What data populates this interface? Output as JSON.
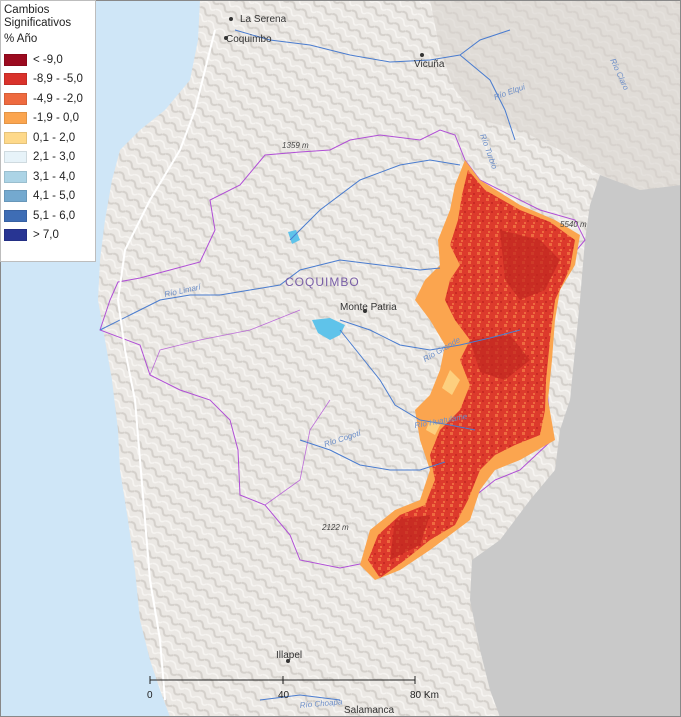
{
  "legend": {
    "title_line1": "Cambios",
    "title_line2": "Significativos",
    "unit": "% Año",
    "items": [
      {
        "label": "< -9,0",
        "color": "#9b0a1f"
      },
      {
        "label": "-8,9 - -5,0",
        "color": "#d9322b"
      },
      {
        "label": "-4,9 - -2,0",
        "color": "#ee6a3f"
      },
      {
        "label": "-1,9 - 0,0",
        "color": "#fba54f"
      },
      {
        "label": "0,1 - 2,0",
        "color": "#fed98a"
      },
      {
        "label": "2,1 - 3,0",
        "color": "#e7f3f9"
      },
      {
        "label": "3,1 - 4,0",
        "color": "#acd4e6"
      },
      {
        "label": "4,1 - 5,0",
        "color": "#74a9cf"
      },
      {
        "label": "5,1 - 6,0",
        "color": "#3e6db5"
      },
      {
        "label": "> 7,0",
        "color": "#283593"
      }
    ]
  },
  "places": {
    "la_serena": "La Serena",
    "coquimbo_city": "Coquimbo",
    "vicuna": "Vicuña",
    "monte_patria": "Monte Patria",
    "illapel": "Illapel",
    "salamanca": "Salamanca",
    "region": "COQUIMBO"
  },
  "rivers": {
    "elqui": "Río Elqui",
    "turbio": "Río Turbio",
    "claro": "Río Claro",
    "limari": "Río Limarí",
    "grande": "Río Grande",
    "huatulame": "Río Huatulame",
    "cogoti": "Río Cogotí",
    "choapa": "Río Choapa"
  },
  "elevations": {
    "e1": "1359 m",
    "e2": "5540 m",
    "e3": "2122 m"
  },
  "scale": {
    "t0": "0",
    "t1": "40",
    "t2": "80 Km"
  },
  "colors": {
    "ocean": "#cfe6f7",
    "land": "#e9e6e2",
    "argentina": "#c9c9c9",
    "boundary": "#b04fd6",
    "river": "#4a7ccf",
    "reservoir": "#5fc3ea"
  }
}
